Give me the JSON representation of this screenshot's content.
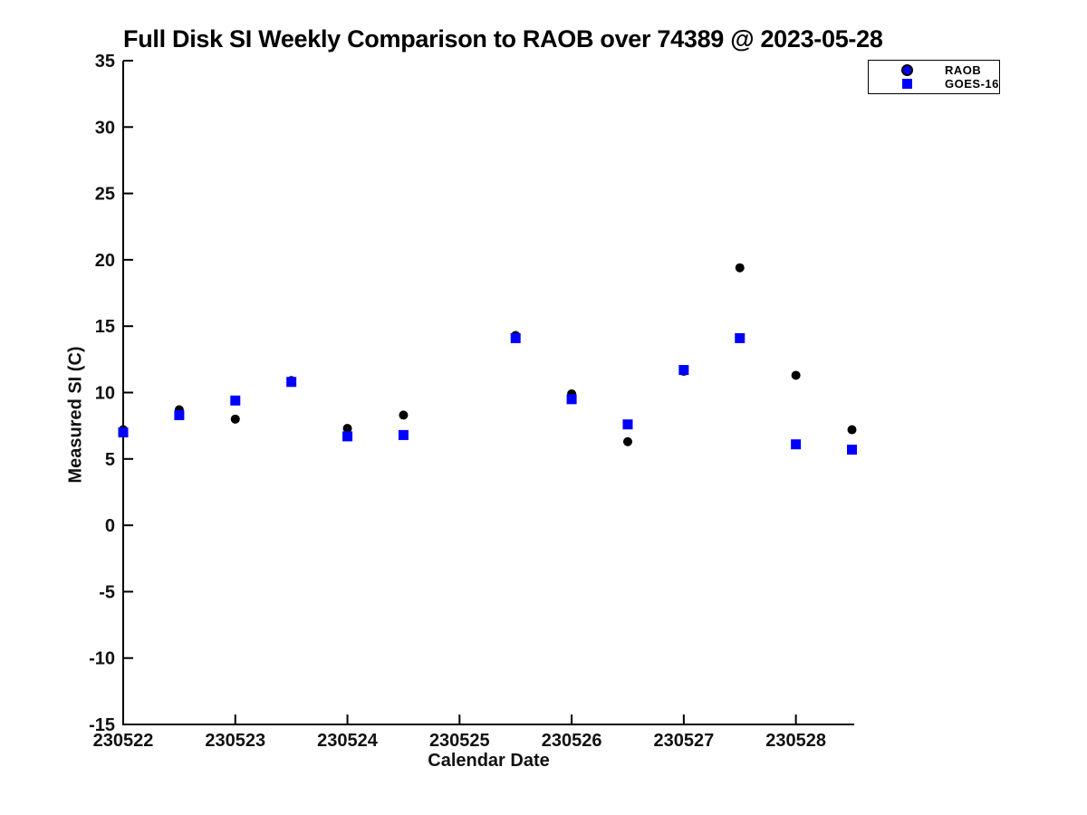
{
  "figure": {
    "background": "#ffffff"
  },
  "chart_data": {
    "type": "scatter",
    "title": "Full Disk SI Weekly Comparison to RAOB over 74389 @ 2023-05-28",
    "xlabel": "Calendar Date",
    "ylabel": "Measured SI (C)",
    "xlim": [
      230522,
      230528.52
    ],
    "ylim": [
      -15,
      35
    ],
    "x_ticks": [
      230522,
      230523,
      230524,
      230525,
      230526,
      230527,
      230528
    ],
    "y_ticks": [
      -15,
      -10,
      -5,
      0,
      5,
      10,
      15,
      20,
      25,
      30,
      35
    ],
    "grid": false,
    "legend_position": "top-right",
    "x": [
      230522.0,
      230522.5,
      230523.0,
      230523.5,
      230524.0,
      230524.5,
      230525.5,
      230526.0,
      230526.5,
      230527.0,
      230527.5,
      230528.0,
      230528.5
    ],
    "series": [
      {
        "name": "RAOB",
        "marker": "circle",
        "marker_color": "#000000",
        "legend_marker_color": "#0000ff",
        "values": [
          7.2,
          8.7,
          8.0,
          10.9,
          7.3,
          8.3,
          14.3,
          9.9,
          6.3,
          11.6,
          19.4,
          11.3,
          7.2
        ]
      },
      {
        "name": "GOES-16",
        "marker": "square",
        "marker_color": "#0000ff",
        "legend_marker_color": "#0000ff",
        "values": [
          7.0,
          8.3,
          9.4,
          10.8,
          6.7,
          6.8,
          14.1,
          9.5,
          7.6,
          11.7,
          14.1,
          6.1,
          5.7
        ]
      }
    ],
    "colors": {
      "axis": "#000000",
      "tick_label": "#111111",
      "blue": "#0000ff",
      "black": "#000000"
    }
  }
}
